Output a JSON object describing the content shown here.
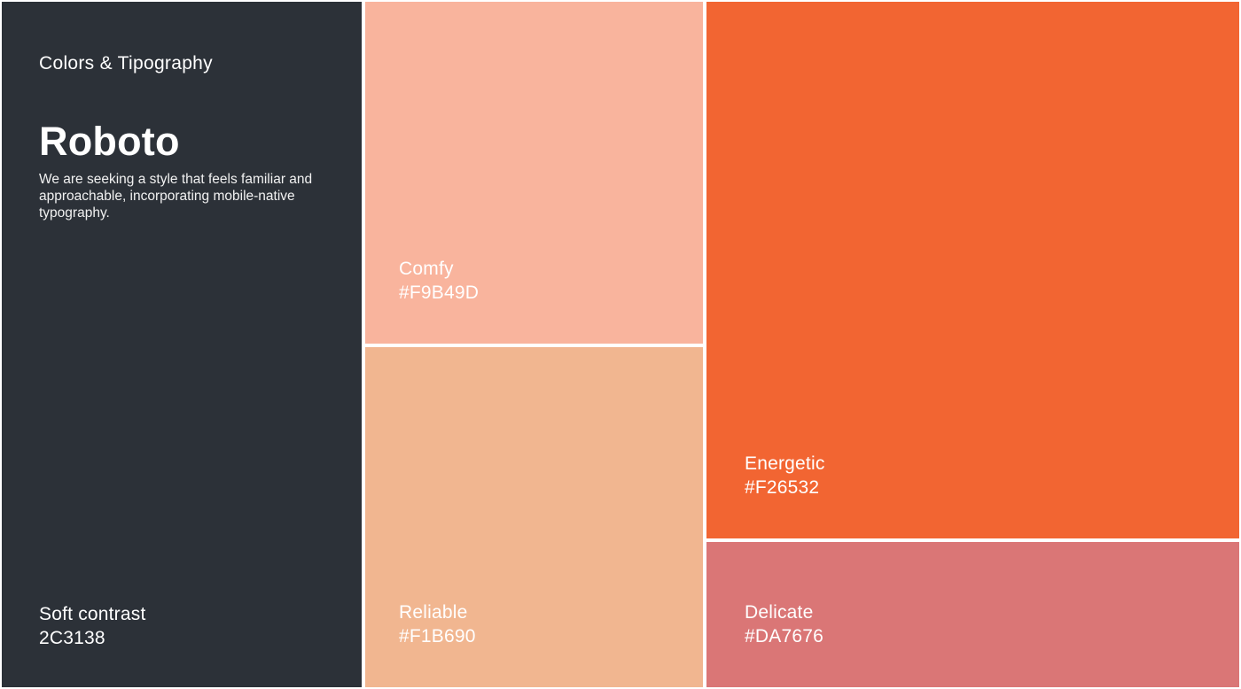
{
  "header": {
    "section_title": "Colors & Tipography",
    "font_name": "Roboto",
    "description": "We are seeking a style that feels familiar and\napproachable, incorporating mobile-native\ntypography."
  },
  "palette": {
    "soft_contrast": {
      "name": "Soft contrast",
      "hex_label": "2C3138",
      "color": "#2C3138"
    },
    "comfy": {
      "name": "Comfy",
      "hex_label": "#F9B49D",
      "color": "#F9B49D"
    },
    "reliable": {
      "name": "Reliable",
      "hex_label": "#F1B690",
      "color": "#F1B690"
    },
    "energetic": {
      "name": "Energetic",
      "hex_label": "#F26532",
      "color": "#F26532"
    },
    "delicate": {
      "name": "Delicate",
      "hex_label": "#DA7676",
      "color": "#DA7676"
    }
  },
  "layout": {
    "background_color": "#FFFFFF",
    "text_color": "#FFFFFF"
  }
}
